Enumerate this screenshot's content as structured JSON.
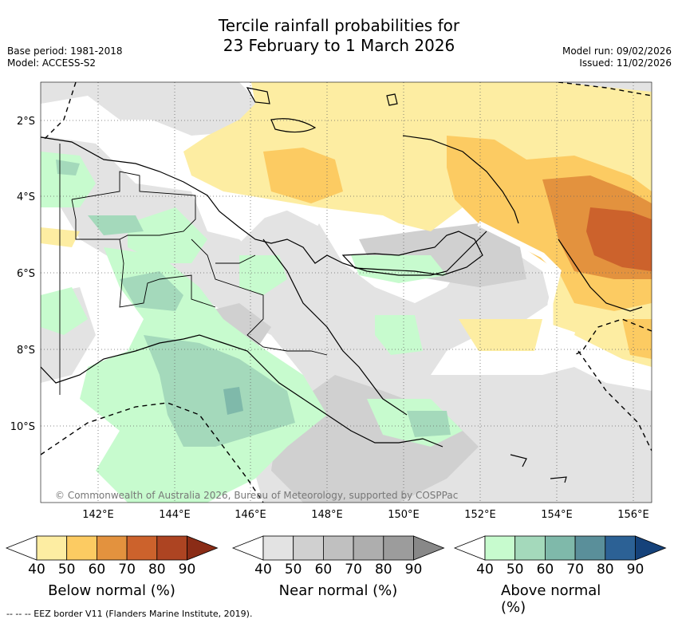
{
  "title_line1": "Tercile rainfall probabilities for",
  "title_line2": "23 February to 1 March 2026",
  "base_period": "Base period: 1981-2018",
  "model": "Model: ACCESS-S2",
  "model_run": "Model run: 09/02/2026",
  "issued": "Issued: 11/02/2026",
  "copyright": "© Commonwealth of Australia 2026, Bureau of Meteorology, supported by COSPPac",
  "footer": "-- -- -- EEZ border V11 (Flanders Marine Institute, 2019).",
  "lat_labels": [
    "2°S",
    "4°S",
    "6°S",
    "8°S",
    "10°S"
  ],
  "lon_labels": [
    "142°E",
    "144°E",
    "146°E",
    "148°E",
    "150°E",
    "152°E",
    "154°E",
    "156°E"
  ],
  "colorbars": [
    {
      "name": "below",
      "title": "Below normal (%)",
      "ticks": [
        "40",
        "50",
        "60",
        "70",
        "80",
        "90"
      ],
      "colors": [
        "#fdeda2",
        "#fccb62",
        "#e3923e",
        "#cc622c",
        "#ad4422",
        "#8a2c16"
      ]
    },
    {
      "name": "near",
      "title": "Near normal (%)",
      "ticks": [
        "40",
        "50",
        "60",
        "70",
        "80",
        "90"
      ],
      "colors": [
        "#e3e3e3",
        "#d0d0d0",
        "#c0c0c0",
        "#aeaeae",
        "#9c9c9c",
        "#888888"
      ]
    },
    {
      "name": "above",
      "title": "Above normal (%)",
      "ticks": [
        "40",
        "50",
        "60",
        "70",
        "80",
        "90"
      ],
      "colors": [
        "#c7fbce",
        "#a4d9bb",
        "#7fb9aa",
        "#5a8f9a",
        "#2c6195",
        "#15427a"
      ]
    }
  ]
}
